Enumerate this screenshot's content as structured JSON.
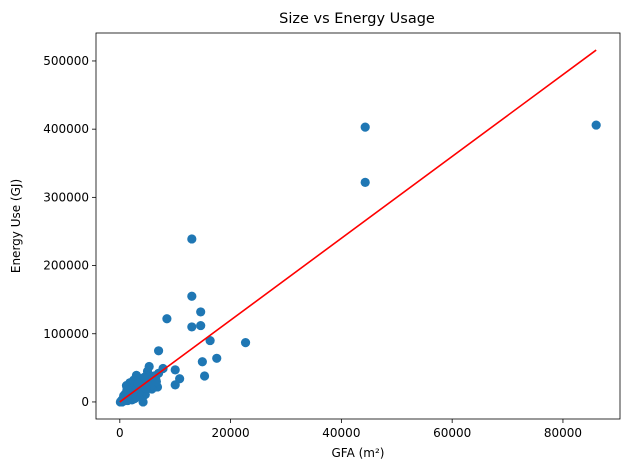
{
  "chart_data": {
    "type": "scatter",
    "title": "Size vs Energy Usage",
    "xlabel": "GFA (m²)",
    "ylabel": "Energy Use (GJ)",
    "xlim": [
      -4300,
      90300
    ],
    "ylim": [
      -25000,
      541000
    ],
    "xticks": [
      0,
      20000,
      40000,
      60000,
      80000
    ],
    "yticks": [
      0,
      100000,
      200000,
      300000,
      400000,
      500000
    ],
    "grid": false,
    "legend": "none",
    "colors": {
      "points": "#1f77b4",
      "fit_line": "#ff0000"
    },
    "series": [
      {
        "kind": "points",
        "points": [
          [
            86000,
            406000
          ],
          [
            44300,
            403000
          ],
          [
            44300,
            322000
          ],
          [
            13000,
            239000
          ],
          [
            13000,
            155000
          ],
          [
            13000,
            110000
          ],
          [
            8500,
            122000
          ],
          [
            14600,
            132000
          ],
          [
            14600,
            112000
          ],
          [
            16300,
            90000
          ],
          [
            22700,
            87000
          ],
          [
            17500,
            64000
          ],
          [
            14900,
            59000
          ],
          [
            15300,
            38000
          ],
          [
            10000,
            47000
          ],
          [
            10800,
            34000
          ],
          [
            10000,
            25000
          ],
          [
            7000,
            75000
          ],
          [
            7800,
            49000
          ],
          [
            7000,
            42000
          ],
          [
            6800,
            22000
          ],
          [
            6500,
            33000
          ],
          [
            6000,
            27000
          ],
          [
            5300,
            52000
          ],
          [
            5000,
            45000
          ],
          [
            4800,
            38000
          ],
          [
            4500,
            30000
          ],
          [
            4300,
            23000
          ],
          [
            4000,
            17000
          ],
          [
            4200,
            0
          ],
          [
            3800,
            34000
          ],
          [
            3500,
            27000
          ],
          [
            3200,
            21000
          ],
          [
            3000,
            39000
          ],
          [
            3000,
            14000
          ],
          [
            2800,
            10000
          ],
          [
            2600,
            25000
          ],
          [
            2500,
            32000
          ],
          [
            2300,
            18000
          ],
          [
            2100,
            7000
          ],
          [
            2000,
            22000
          ],
          [
            1900,
            13000
          ],
          [
            1800,
            28000
          ],
          [
            1600,
            5000
          ],
          [
            1500,
            16000
          ],
          [
            1400,
            9000
          ],
          [
            1200,
            24000
          ],
          [
            1100,
            3000
          ],
          [
            1000,
            12000
          ],
          [
            900,
            6000
          ],
          [
            800,
            2000
          ],
          [
            700,
            9000
          ],
          [
            600,
            1000
          ],
          [
            500,
            4000
          ],
          [
            400,
            0
          ],
          [
            300,
            2000
          ],
          [
            200,
            500
          ],
          [
            100,
            0
          ],
          [
            5500,
            29000
          ],
          [
            6200,
            38000
          ],
          [
            5800,
            19000
          ],
          [
            4600,
            11000
          ],
          [
            3400,
            8000
          ],
          [
            3600,
            15000
          ],
          [
            2700,
            5000
          ],
          [
            1700,
            11000
          ],
          [
            2200,
            3000
          ],
          [
            4900,
            27000
          ],
          [
            5100,
            32000
          ],
          [
            3900,
            22000
          ],
          [
            4400,
            36000
          ],
          [
            2900,
            30000
          ],
          [
            1300,
            18000
          ],
          [
            3300,
            27000
          ],
          [
            5600,
            24000
          ],
          [
            6600,
            30000
          ],
          [
            4700,
            20000
          ],
          [
            2400,
            12000
          ],
          [
            1400,
            2000
          ]
        ]
      },
      {
        "kind": "regression-line",
        "x": [
          0,
          86000
        ],
        "y": [
          0,
          516000
        ]
      }
    ]
  }
}
